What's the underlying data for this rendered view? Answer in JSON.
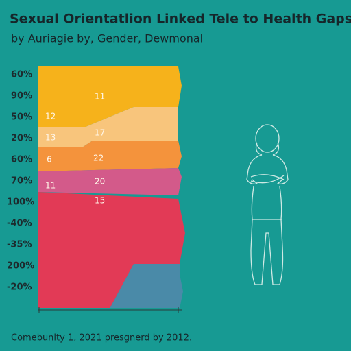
{
  "title": "Sexual Orientatlion Linked Tele to Health Gaps",
  "subtitle": "by Auriagie by, Gender, Dewmonal",
  "y_labels": [
    "60%",
    "90%",
    "50%",
    "20%",
    "60%",
    "70%",
    "100%",
    "-40%",
    "-35%",
    "200%",
    "-20%"
  ],
  "band_labels": [
    "11",
    "12",
    "17",
    "13",
    "6",
    "22",
    "11",
    "20",
    "15"
  ],
  "footer": "Comebunity 1, 2021 presgnerd by 2012."
}
